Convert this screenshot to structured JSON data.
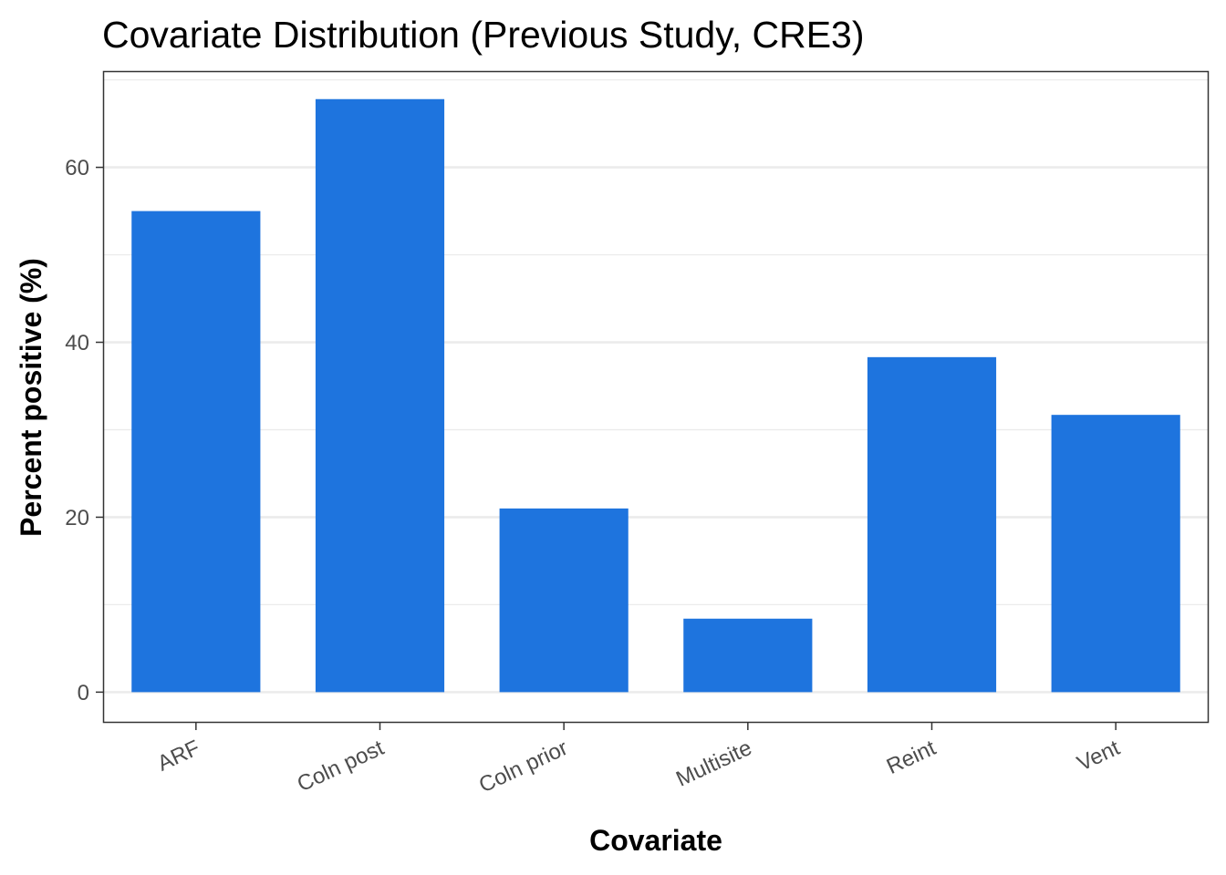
{
  "chart_data": {
    "type": "bar",
    "title": "Covariate Distribution (Previous Study, CRE3)",
    "xlabel": "Covariate",
    "ylabel": "Percent positive (%)",
    "categories": [
      "ARF",
      "Coln post",
      "Coln prior",
      "Multisite",
      "Reint",
      "Vent"
    ],
    "values": [
      55.0,
      67.8,
      21.0,
      8.4,
      38.3,
      31.7
    ],
    "ylim": [
      -3.4,
      70.9
    ],
    "yticks": [
      0,
      20,
      40,
      60
    ],
    "ytick_labels": [
      "0",
      "20",
      "40",
      "60"
    ],
    "grid": true,
    "bar_color": "#1e74de",
    "panel_border_color": "#333333",
    "grid_color": "#ebebeb"
  }
}
